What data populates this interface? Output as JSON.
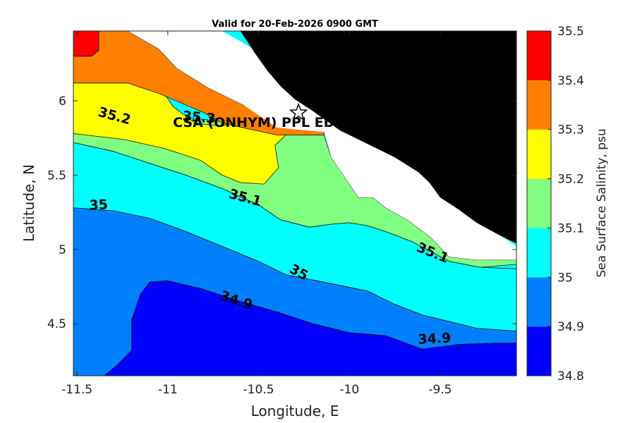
{
  "chart_data": {
    "type": "contourf",
    "title": "Valid for 20-Feb-2026 0900 GMT",
    "xlabel": "Longitude, E",
    "ylabel": "Latitude, N",
    "xlim": [
      -11.52,
      -9.08
    ],
    "ylim": [
      4.15,
      6.47
    ],
    "xticks": [
      -11.5,
      -11,
      -10.5,
      -10,
      -9.5
    ],
    "xtick_labels": [
      "-11.5",
      "-11",
      "-10.5",
      "-10",
      "-9.5"
    ],
    "yticks": [
      4.5,
      5,
      5.5,
      6
    ],
    "ytick_labels": [
      "4.5",
      "5",
      "5.5",
      "6"
    ],
    "colorbar": {
      "label": "Sea Surface Salinity, psu",
      "levels": [
        34.8,
        34.9,
        35,
        35.1,
        35.2,
        35.3,
        35.4,
        35.5
      ],
      "tick_labels": [
        "34.8",
        "34.9",
        "35",
        "35.1",
        "35.2",
        "35.3",
        "35.4",
        "35.5"
      ],
      "colors": [
        "#0000ff",
        "#0080ff",
        "#00ffff",
        "#80ff80",
        "#ffff00",
        "#ff8000",
        "#ff0000"
      ]
    },
    "land_color": "#000000",
    "nodata_color": "#ffffff",
    "contour_labels": [
      {
        "text": "35.2",
        "lon": -11.3,
        "lat": 5.87,
        "angle": 15
      },
      {
        "text": "35.3",
        "lon": -10.83,
        "lat": 5.86,
        "angle": 5
      },
      {
        "text": "35.1",
        "lon": -10.58,
        "lat": 5.32,
        "angle": 15
      },
      {
        "text": "35",
        "lon": -11.38,
        "lat": 5.27,
        "angle": -3
      },
      {
        "text": "35",
        "lon": -10.29,
        "lat": 4.82,
        "angle": 28
      },
      {
        "text": "35.1",
        "lon": -9.55,
        "lat": 4.95,
        "angle": 22
      },
      {
        "text": "34.9",
        "lon": -10.63,
        "lat": 4.63,
        "angle": 18
      },
      {
        "text": "34.9",
        "lon": -9.53,
        "lat": 4.37,
        "angle": -3
      }
    ],
    "station": {
      "label": "CSA (ONHYM) PPL ED",
      "lon": -10.28,
      "lat": 5.92,
      "marker": "pentagram"
    },
    "regions": {
      "r35_5": [
        [
          -11.52,
          6.47
        ],
        [
          -11.38,
          6.47
        ],
        [
          -11.38,
          6.34
        ],
        [
          -11.42,
          6.3
        ],
        [
          -11.52,
          6.3
        ]
      ],
      "r35_4": [
        [
          -11.52,
          6.47
        ],
        [
          -11.22,
          6.47
        ],
        [
          -11.05,
          6.35
        ],
        [
          -10.95,
          6.22
        ],
        [
          -10.78,
          6.09
        ],
        [
          -10.58,
          5.97
        ],
        [
          -10.38,
          5.87
        ],
        [
          -10.28,
          5.86
        ],
        [
          -10.14,
          5.83
        ],
        [
          -10.14,
          5.77
        ],
        [
          -10.4,
          5.77
        ],
        [
          -10.7,
          5.85
        ],
        [
          -10.8,
          5.92
        ],
        [
          -11.05,
          6.05
        ],
        [
          -11.22,
          6.12
        ],
        [
          -11.52,
          6.12
        ]
      ],
      "r35_3": [
        [
          -11.52,
          6.14
        ],
        [
          -11.22,
          6.14
        ],
        [
          -11.08,
          6.1
        ],
        [
          -11.02,
          6.05
        ],
        [
          -10.97,
          5.96
        ],
        [
          -10.85,
          5.85
        ],
        [
          -10.7,
          5.83
        ],
        [
          -10.5,
          5.92
        ],
        [
          -10.4,
          5.97
        ],
        [
          -10.3,
          5.88
        ],
        [
          -10.2,
          5.84
        ],
        [
          -10.14,
          5.83
        ],
        [
          -10.14,
          5.77
        ],
        [
          -10.35,
          5.77
        ],
        [
          -10.41,
          5.7
        ],
        [
          -10.39,
          5.55
        ],
        [
          -10.47,
          5.44
        ],
        [
          -10.6,
          5.45
        ],
        [
          -10.7,
          5.5
        ],
        [
          -10.82,
          5.6
        ],
        [
          -11.02,
          5.68
        ],
        [
          -11.24,
          5.74
        ],
        [
          -11.52,
          5.78
        ]
      ],
      "r35_2": [
        [
          -11.52,
          5.98
        ],
        [
          -11.3,
          5.95
        ],
        [
          -10.97,
          5.9
        ],
        [
          -10.7,
          5.86
        ],
        [
          -10.4,
          5.82
        ],
        [
          -10.14,
          5.79
        ],
        [
          -10.14,
          5.77
        ],
        [
          -10.1,
          5.62
        ],
        [
          -9.95,
          5.35
        ],
        [
          -9.87,
          5.35
        ],
        [
          -9.8,
          5.28
        ],
        [
          -9.68,
          5.2
        ],
        [
          -9.55,
          5.08
        ],
        [
          -9.45,
          4.95
        ],
        [
          -9.3,
          4.93
        ],
        [
          -9.08,
          4.93
        ],
        [
          -9.08,
          4.9
        ],
        [
          -9.28,
          4.88
        ],
        [
          -9.45,
          4.92
        ],
        [
          -9.65,
          5.05
        ],
        [
          -9.8,
          5.12
        ],
        [
          -9.9,
          5.16
        ],
        [
          -10.0,
          5.18
        ],
        [
          -10.1,
          5.17
        ],
        [
          -10.22,
          5.15
        ],
        [
          -10.38,
          5.2
        ],
        [
          -10.5,
          5.3
        ],
        [
          -10.7,
          5.41
        ],
        [
          -10.9,
          5.5
        ],
        [
          -11.1,
          5.58
        ],
        [
          -11.3,
          5.66
        ],
        [
          -11.52,
          5.72
        ]
      ],
      "r35_1": [
        [
          -11.52,
          5.72
        ],
        [
          -11.3,
          5.66
        ],
        [
          -11.1,
          5.58
        ],
        [
          -10.9,
          5.5
        ],
        [
          -10.7,
          5.41
        ],
        [
          -10.5,
          5.3
        ],
        [
          -10.38,
          5.2
        ],
        [
          -10.22,
          5.15
        ],
        [
          -10.1,
          5.17
        ],
        [
          -10.0,
          5.18
        ],
        [
          -9.9,
          5.16
        ],
        [
          -9.8,
          5.12
        ],
        [
          -9.65,
          5.05
        ],
        [
          -9.45,
          4.92
        ],
        [
          -9.28,
          4.88
        ],
        [
          -9.08,
          4.87
        ],
        [
          -9.08,
          4.45
        ],
        [
          -9.3,
          4.47
        ],
        [
          -9.6,
          4.56
        ],
        [
          -9.75,
          4.63
        ],
        [
          -9.9,
          4.72
        ],
        [
          -10.1,
          4.77
        ],
        [
          -10.35,
          4.83
        ],
        [
          -10.5,
          4.92
        ],
        [
          -10.7,
          5.02
        ],
        [
          -10.9,
          5.12
        ],
        [
          -11.1,
          5.21
        ],
        [
          -11.3,
          5.26
        ],
        [
          -11.52,
          5.28
        ]
      ],
      "r35_0": [
        [
          -11.52,
          5.28
        ],
        [
          -11.3,
          5.26
        ],
        [
          -11.1,
          5.21
        ],
        [
          -10.9,
          5.12
        ],
        [
          -10.7,
          5.02
        ],
        [
          -10.5,
          4.92
        ],
        [
          -10.35,
          4.83
        ],
        [
          -10.1,
          4.77
        ],
        [
          -9.9,
          4.72
        ],
        [
          -9.75,
          4.63
        ],
        [
          -9.6,
          4.56
        ],
        [
          -9.3,
          4.47
        ],
        [
          -9.08,
          4.45
        ],
        [
          -9.08,
          4.37
        ],
        [
          -9.2,
          4.37
        ],
        [
          -9.4,
          4.36
        ],
        [
          -9.6,
          4.33
        ],
        [
          -9.8,
          4.42
        ],
        [
          -10.0,
          4.44
        ],
        [
          -10.2,
          4.5
        ],
        [
          -10.4,
          4.58
        ],
        [
          -10.6,
          4.65
        ],
        [
          -10.8,
          4.73
        ],
        [
          -11.0,
          4.79
        ],
        [
          -11.1,
          4.78
        ],
        [
          -11.15,
          4.7
        ],
        [
          -11.2,
          4.52
        ],
        [
          -11.2,
          4.32
        ],
        [
          -11.28,
          4.22
        ],
        [
          -11.35,
          4.15
        ],
        [
          -11.52,
          4.15
        ]
      ],
      "r34_9": [
        [
          -11.35,
          4.15
        ],
        [
          -11.28,
          4.22
        ],
        [
          -11.2,
          4.32
        ],
        [
          -11.2,
          4.52
        ],
        [
          -11.15,
          4.7
        ],
        [
          -11.1,
          4.78
        ],
        [
          -11.0,
          4.79
        ],
        [
          -10.8,
          4.73
        ],
        [
          -10.6,
          4.65
        ],
        [
          -10.4,
          4.58
        ],
        [
          -10.2,
          4.5
        ],
        [
          -10.0,
          4.44
        ],
        [
          -9.8,
          4.42
        ],
        [
          -9.6,
          4.33
        ],
        [
          -9.4,
          4.36
        ],
        [
          -9.2,
          4.37
        ],
        [
          -9.08,
          4.37
        ],
        [
          -9.08,
          4.15
        ]
      ],
      "nodata": [
        [
          -11.38,
          6.47
        ],
        [
          -10.7,
          6.47
        ],
        [
          -10.4,
          6.26
        ],
        [
          -10.2,
          6.05
        ],
        [
          -10.0,
          5.9
        ],
        [
          -9.8,
          5.72
        ],
        [
          -9.65,
          5.58
        ],
        [
          -9.55,
          5.5
        ],
        [
          -9.45,
          5.35
        ],
        [
          -9.3,
          5.22
        ],
        [
          -9.2,
          5.12
        ],
        [
          -9.08,
          5.02
        ],
        [
          -9.08,
          4.93
        ],
        [
          -9.3,
          4.93
        ],
        [
          -9.45,
          4.95
        ],
        [
          -9.55,
          5.08
        ],
        [
          -9.68,
          5.2
        ],
        [
          -9.8,
          5.28
        ],
        [
          -9.87,
          5.35
        ],
        [
          -9.95,
          5.35
        ],
        [
          -10.1,
          5.62
        ],
        [
          -10.14,
          5.79
        ],
        [
          -10.4,
          5.82
        ],
        [
          -10.58,
          5.97
        ],
        [
          -10.78,
          6.09
        ],
        [
          -10.95,
          6.22
        ],
        [
          -11.05,
          6.35
        ],
        [
          -11.22,
          6.47
        ]
      ],
      "land": [
        [
          -10.6,
          6.47
        ],
        [
          -9.08,
          6.47
        ],
        [
          -9.08,
          5.04
        ],
        [
          -9.18,
          5.1
        ],
        [
          -9.3,
          5.18
        ],
        [
          -9.4,
          5.27
        ],
        [
          -9.5,
          5.35
        ],
        [
          -9.56,
          5.45
        ],
        [
          -9.62,
          5.52
        ],
        [
          -9.75,
          5.62
        ],
        [
          -9.85,
          5.68
        ],
        [
          -9.95,
          5.74
        ],
        [
          -10.05,
          5.8
        ],
        [
          -10.12,
          5.86
        ],
        [
          -10.2,
          5.93
        ],
        [
          -10.3,
          6.01
        ],
        [
          -10.38,
          6.1
        ],
        [
          -10.45,
          6.2
        ],
        [
          -10.52,
          6.32
        ]
      ]
    }
  }
}
